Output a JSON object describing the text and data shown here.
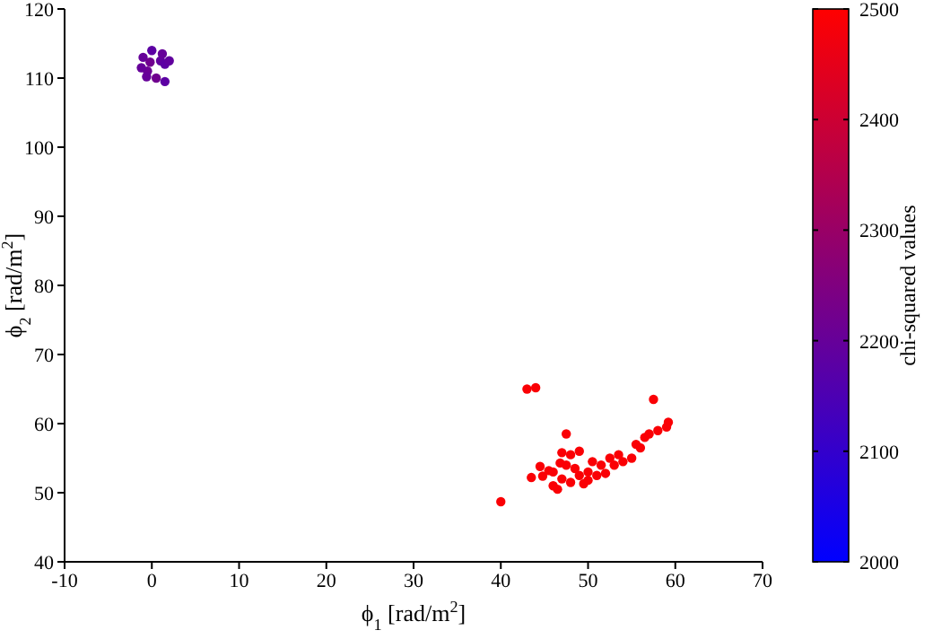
{
  "chart_data": {
    "type": "scatter",
    "xlabel": "ϕ$_{1}$ [rad/m$^{2}$]",
    "ylabel": "ϕ$_{2}$ [rad/m$^{2}$]",
    "clabel": "chi-squared values",
    "xlim": [
      -10,
      70
    ],
    "xticks": [
      -10,
      0,
      10,
      20,
      30,
      40,
      50,
      60,
      70
    ],
    "ylim": [
      40,
      120
    ],
    "yticks": [
      40,
      50,
      60,
      70,
      80,
      90,
      100,
      110,
      120
    ],
    "clim": [
      2000,
      2500
    ],
    "cticks": [
      2000,
      2100,
      2200,
      2300,
      2400,
      2500
    ],
    "marker": "circle",
    "x": [
      -1,
      0,
      1,
      1.5,
      -0.5,
      0.5,
      1.5,
      -1.2,
      2,
      -0.6,
      1.2,
      -0.2,
      40,
      43,
      44,
      43.5,
      44.5,
      45.5,
      46,
      46.5,
      47,
      47.5,
      47.5,
      48,
      47,
      48,
      49,
      49.5,
      50,
      50.5,
      51,
      51.5,
      52,
      52.5,
      53,
      53.5,
      54,
      55,
      55.5,
      56,
      56.5,
      57,
      57.5,
      58,
      59,
      59.2,
      46,
      48.5,
      49,
      50,
      46.8,
      44.8
    ],
    "values": [
      113,
      114,
      112.5,
      112,
      111,
      110,
      109.5,
      111.5,
      112.5,
      110.2,
      113.5,
      112.3,
      48.7,
      65,
      65.2,
      52.2,
      53.8,
      53.2,
      51,
      50.5,
      52,
      54,
      58.5,
      55.5,
      55.8,
      51.5,
      52.5,
      51.3,
      53,
      54.5,
      52.5,
      54,
      52.8,
      55,
      54,
      55.5,
      54.5,
      55,
      57,
      56.5,
      58,
      58.5,
      63.5,
      59,
      59.5,
      60.2,
      53,
      53.5,
      56,
      51.8,
      54.3,
      52.4
    ],
    "cvalues": [
      2200,
      2180,
      2190,
      2180,
      2210,
      2220,
      2180,
      2200,
      2190,
      2200,
      2200,
      2220,
      2490,
      2490,
      2490,
      2490,
      2490,
      2490,
      2490,
      2490,
      2490,
      2490,
      2490,
      2490,
      2490,
      2490,
      2490,
      2490,
      2490,
      2490,
      2490,
      2490,
      2490,
      2490,
      2490,
      2490,
      2490,
      2490,
      2490,
      2490,
      2490,
      2490,
      2490,
      2490,
      2490,
      2490,
      2490,
      2490,
      2490,
      2490,
      2490,
      2490
    ]
  }
}
